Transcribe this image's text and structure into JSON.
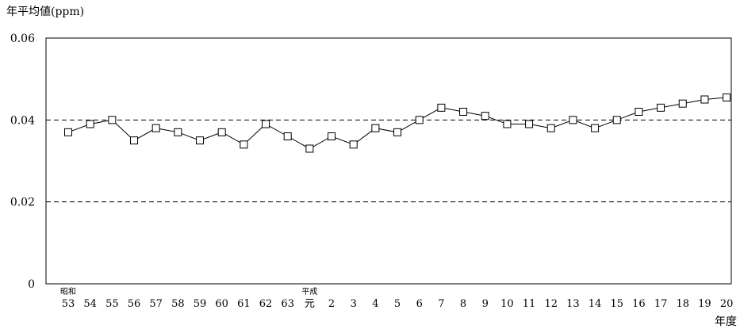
{
  "chart_data": {
    "type": "line",
    "title": "",
    "ylabel": "年平均値(ppm)",
    "xlabel": "年度",
    "ylim": [
      0,
      0.06
    ],
    "y_ticks": [
      "0",
      "0.02",
      "0.04",
      "0.06"
    ],
    "y_tick_values": [
      0,
      0.02,
      0.04,
      0.06
    ],
    "grid": "dashed horizontal",
    "era_labels": [
      {
        "text": "昭和",
        "index": 0
      },
      {
        "text": "平成",
        "index": 11
      }
    ],
    "categories": [
      "53",
      "54",
      "55",
      "56",
      "57",
      "58",
      "59",
      "60",
      "61",
      "62",
      "63",
      "元",
      "2",
      "3",
      "4",
      "5",
      "6",
      "7",
      "8",
      "9",
      "10",
      "11",
      "12",
      "13",
      "14",
      "15",
      "16",
      "17",
      "18",
      "19",
      "20"
    ],
    "series": [
      {
        "values": [
          0.037,
          0.039,
          0.04,
          0.035,
          0.038,
          0.037,
          0.035,
          0.037,
          0.034,
          0.039,
          0.036,
          0.033,
          0.036,
          0.034,
          0.038,
          0.037,
          0.04,
          0.043,
          0.042,
          0.041,
          0.039,
          0.039,
          0.038,
          0.04,
          0.038,
          0.04,
          0.042,
          0.043,
          0.044,
          0.045,
          0.0455
        ]
      }
    ]
  }
}
